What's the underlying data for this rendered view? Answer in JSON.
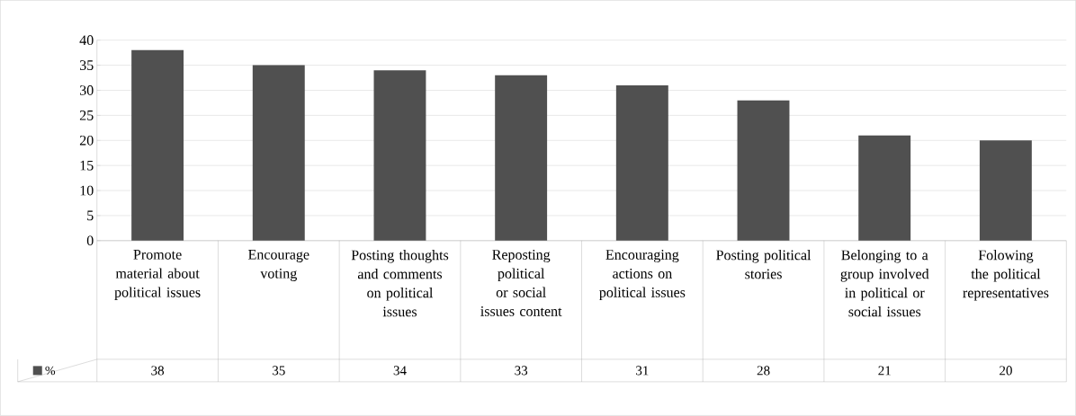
{
  "chart_data": {
    "type": "bar",
    "categories": [
      "Promote material about political issues",
      "Encourage voting",
      "Posting thoughts and comments on political issues",
      "Reposting political or social issues content",
      "Encouraging actions on political issues",
      "Posting political stories",
      "Belonging to a group involved in political or social issues",
      "Folowing the political representatives"
    ],
    "series": [
      {
        "name": "%",
        "color": "#505050",
        "values": [
          38,
          35,
          34,
          33,
          31,
          28,
          21,
          20
        ]
      }
    ],
    "ylim": [
      0,
      40
    ],
    "yticks": [
      0,
      5,
      10,
      15,
      20,
      25,
      30,
      35,
      40
    ],
    "grid": "y",
    "legend": "bottom left",
    "data_labels": true
  }
}
